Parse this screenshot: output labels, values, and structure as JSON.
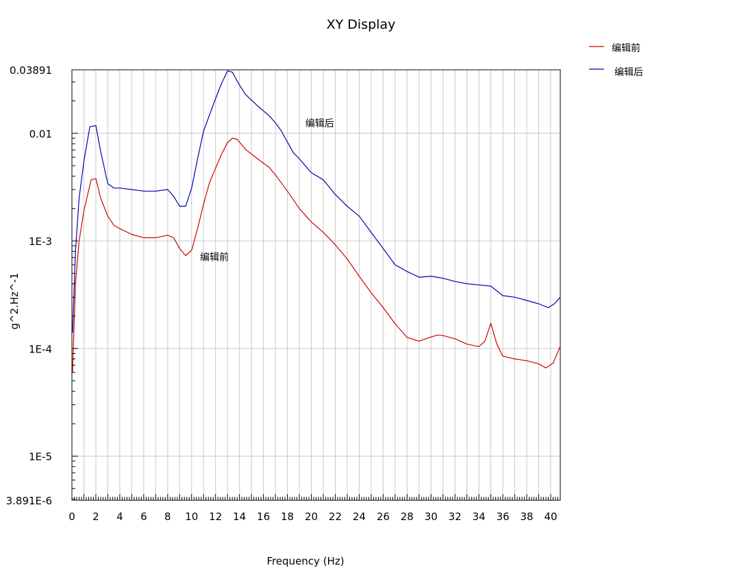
{
  "chart_data": {
    "type": "line",
    "title": "XY Display",
    "xlabel": "Frequency (Hz)",
    "ylabel": "g^2.Hz^-1",
    "y_scale": "log",
    "xlim": [
      0,
      40.8
    ],
    "ylim": [
      3.891e-06,
      0.03891
    ],
    "x_ticks": [
      0,
      2,
      4,
      6,
      8,
      10,
      12,
      14,
      16,
      18,
      20,
      22,
      24,
      26,
      28,
      30,
      32,
      34,
      36,
      38,
      40
    ],
    "x_tick_labels": [
      "0",
      "2",
      "4",
      "6",
      "8",
      "10",
      "12",
      "14",
      "16",
      "18",
      "20",
      "22",
      "24",
      "26",
      "28",
      "30",
      "32",
      "34",
      "36",
      "38",
      "40"
    ],
    "y_ticks": [
      0.03891,
      0.01,
      0.001,
      0.0001,
      1e-05,
      3.891e-06
    ],
    "y_tick_labels": [
      "0.03891",
      "0.01",
      "1E-3",
      "1E-4",
      "1E-5",
      "3.891E-6"
    ],
    "grid": true,
    "legend_position": "top-right",
    "series": [
      {
        "name": "编辑前",
        "color": "#cc0000",
        "points": [
          [
            0.05,
            6e-05
          ],
          [
            0.3,
            0.0004
          ],
          [
            0.6,
            0.001
          ],
          [
            1.0,
            0.0019
          ],
          [
            1.6,
            0.0037
          ],
          [
            2.0,
            0.0038
          ],
          [
            2.4,
            0.0025
          ],
          [
            3.0,
            0.0017
          ],
          [
            3.5,
            0.0014
          ],
          [
            4.0,
            0.0013
          ],
          [
            5.0,
            0.00115
          ],
          [
            6.0,
            0.00107
          ],
          [
            7.0,
            0.00107
          ],
          [
            8.0,
            0.00113
          ],
          [
            8.5,
            0.00107
          ],
          [
            9.0,
            0.00085
          ],
          [
            9.5,
            0.00073
          ],
          [
            10.0,
            0.00082
          ],
          [
            10.5,
            0.0013
          ],
          [
            11.0,
            0.0022
          ],
          [
            11.5,
            0.0035
          ],
          [
            12.5,
            0.0064
          ],
          [
            13.0,
            0.0082
          ],
          [
            13.4,
            0.009
          ],
          [
            13.8,
            0.0088
          ],
          [
            14.5,
            0.0071
          ],
          [
            15.5,
            0.0058
          ],
          [
            16.5,
            0.0048
          ],
          [
            17.0,
            0.0041
          ],
          [
            18.0,
            0.0029
          ],
          [
            19.0,
            0.002
          ],
          [
            20.0,
            0.0015
          ],
          [
            21.0,
            0.0012
          ],
          [
            22.0,
            0.00092
          ],
          [
            23.0,
            0.00068
          ],
          [
            24.0,
            0.00047
          ],
          [
            25.0,
            0.00033
          ],
          [
            26.0,
            0.00024
          ],
          [
            27.0,
            0.00017
          ],
          [
            28.0,
            0.000127
          ],
          [
            29.0,
            0.000117
          ],
          [
            30.0,
            0.000128
          ],
          [
            30.5,
            0.000133
          ],
          [
            31.0,
            0.000132
          ],
          [
            32.0,
            0.000123
          ],
          [
            33.0,
            0.00011
          ],
          [
            34.0,
            0.000104
          ],
          [
            34.5,
            0.000117
          ],
          [
            35.0,
            0.000172
          ],
          [
            35.5,
            0.00011
          ],
          [
            36.0,
            8.5e-05
          ],
          [
            37.0,
            8e-05
          ],
          [
            38.0,
            7.7e-05
          ],
          [
            39.0,
            7.2e-05
          ],
          [
            39.6,
            6.6e-05
          ],
          [
            40.2,
            7.3e-05
          ],
          [
            40.8,
            0.000105
          ]
        ]
      },
      {
        "name": "编辑后",
        "color": "#0000aa",
        "points": [
          [
            0.05,
            0.00014
          ],
          [
            0.3,
            0.0008
          ],
          [
            0.6,
            0.0025
          ],
          [
            1.0,
            0.0055
          ],
          [
            1.5,
            0.0115
          ],
          [
            2.0,
            0.0118
          ],
          [
            2.4,
            0.0068
          ],
          [
            3.0,
            0.0034
          ],
          [
            3.5,
            0.0031
          ],
          [
            4.0,
            0.0031
          ],
          [
            5.0,
            0.003
          ],
          [
            6.0,
            0.0029
          ],
          [
            7.0,
            0.0029
          ],
          [
            8.0,
            0.003
          ],
          [
            8.5,
            0.0026
          ],
          [
            9.0,
            0.0021
          ],
          [
            9.5,
            0.0021
          ],
          [
            10.0,
            0.0031
          ],
          [
            10.5,
            0.0058
          ],
          [
            11.0,
            0.0105
          ],
          [
            12.0,
            0.021
          ],
          [
            12.5,
            0.029
          ],
          [
            13.0,
            0.038
          ],
          [
            13.4,
            0.037
          ],
          [
            14.0,
            0.028
          ],
          [
            14.5,
            0.023
          ],
          [
            15.5,
            0.018
          ],
          [
            16.5,
            0.0145
          ],
          [
            17.0,
            0.0125
          ],
          [
            17.5,
            0.0105
          ],
          [
            18.0,
            0.0083
          ],
          [
            18.5,
            0.0066
          ],
          [
            19.0,
            0.0058
          ],
          [
            20.0,
            0.0043
          ],
          [
            21.0,
            0.0037
          ],
          [
            22.0,
            0.0027
          ],
          [
            23.0,
            0.0021
          ],
          [
            24.0,
            0.0017
          ],
          [
            25.0,
            0.0012
          ],
          [
            26.0,
            0.00085
          ],
          [
            27.0,
            0.0006
          ],
          [
            28.0,
            0.00052
          ],
          [
            29.0,
            0.00046
          ],
          [
            30.0,
            0.00047
          ],
          [
            31.0,
            0.00045
          ],
          [
            32.0,
            0.00042
          ],
          [
            33.0,
            0.0004
          ],
          [
            34.0,
            0.00039
          ],
          [
            35.0,
            0.00038
          ],
          [
            36.0,
            0.00031
          ],
          [
            37.0,
            0.0003
          ],
          [
            38.0,
            0.00028
          ],
          [
            39.0,
            0.00026
          ],
          [
            39.8,
            0.00024
          ],
          [
            40.3,
            0.00026
          ],
          [
            40.8,
            0.0003
          ]
        ]
      }
    ],
    "annotations": [
      {
        "text": "编辑后",
        "x": 20.7,
        "y": 0.0115
      },
      {
        "text": "编辑前",
        "x": 11.9,
        "y": 0.00066
      }
    ]
  }
}
